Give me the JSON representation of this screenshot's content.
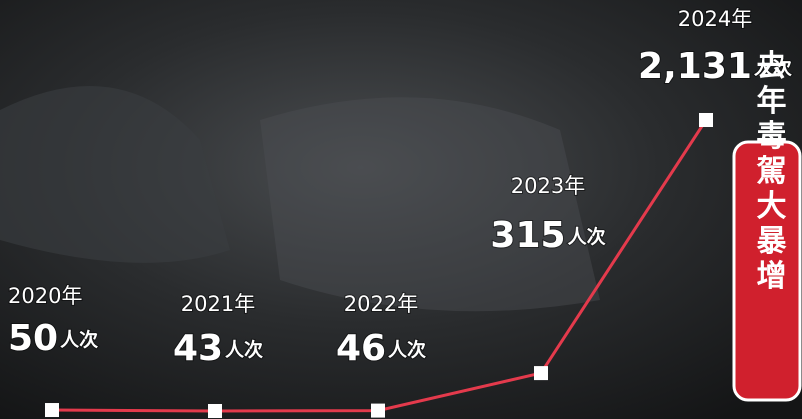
{
  "chart_data": {
    "type": "line",
    "categories": [
      "2020年",
      "2021年",
      "2022年",
      "2023年",
      "2024年"
    ],
    "values": [
      50,
      43,
      46,
      315,
      2131
    ],
    "value_labels": [
      "50",
      "43",
      "46",
      "315",
      "2,131"
    ],
    "unit": "人次",
    "color": "#e43a4c",
    "annotation": "去年毒駕大暴增"
  }
}
